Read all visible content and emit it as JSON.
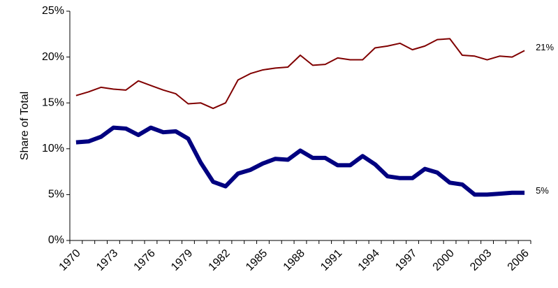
{
  "chart_data": {
    "type": "line",
    "y_label": "Share of Total",
    "categories": [
      "1970",
      null,
      null,
      "1973",
      null,
      null,
      "1976",
      null,
      null,
      "1979",
      null,
      null,
      "1982",
      null,
      null,
      "1985",
      null,
      null,
      "1988",
      null,
      null,
      "1991",
      null,
      null,
      "1994",
      null,
      null,
      "1997",
      null,
      null,
      "2000",
      null,
      null,
      "2003",
      null,
      null,
      "2006"
    ],
    "series": [
      {
        "color": "#800000",
        "width": 2,
        "end_label": "21%",
        "values": [
          15.8,
          16.2,
          16.7,
          16.5,
          16.4,
          17.4,
          16.9,
          16.4,
          16.0,
          14.9,
          15.0,
          14.4,
          15.0,
          17.5,
          18.2,
          18.6,
          18.8,
          18.9,
          20.2,
          19.1,
          19.2,
          19.9,
          19.7,
          19.7,
          21.0,
          21.2,
          21.5,
          20.8,
          21.2,
          21.9,
          22.0,
          20.2,
          20.1,
          19.7,
          20.1,
          20.0,
          20.7
        ]
      },
      {
        "color": "#000080",
        "width": 6,
        "end_label": "5%",
        "values": [
          10.7,
          10.8,
          11.3,
          12.3,
          12.2,
          11.5,
          12.3,
          11.8,
          11.9,
          11.1,
          8.5,
          6.4,
          5.9,
          7.3,
          7.7,
          8.4,
          8.9,
          8.8,
          9.8,
          9.0,
          9.0,
          8.2,
          8.2,
          9.2,
          8.3,
          7.0,
          6.8,
          6.8,
          7.8,
          7.4,
          6.3,
          6.1,
          5.0,
          5.0,
          5.1,
          5.2,
          5.2
        ]
      }
    ],
    "ylim": [
      0,
      25
    ],
    "yticks": [
      {
        "value": 0,
        "label": "0%"
      },
      {
        "value": 5,
        "label": "5%"
      },
      {
        "value": 10,
        "label": "10%"
      },
      {
        "value": 15,
        "label": "15%"
      },
      {
        "value": 20,
        "label": "20%"
      },
      {
        "value": 25,
        "label": "25%"
      }
    ],
    "grid": false
  }
}
